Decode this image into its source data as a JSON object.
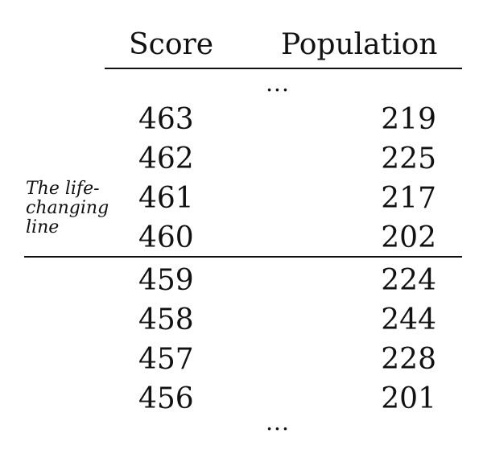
{
  "table": {
    "headers": {
      "score": "Score",
      "population": "Population"
    },
    "ellipsis_top": "...",
    "ellipsis_bottom": "...",
    "annotation": "The life-changing line",
    "rows_above_line": [
      {
        "score": "463",
        "population": "219"
      },
      {
        "score": "462",
        "population": "225"
      },
      {
        "score": "461",
        "population": "217"
      },
      {
        "score": "460",
        "population": "202"
      }
    ],
    "rows_below_line": [
      {
        "score": "459",
        "population": "224"
      },
      {
        "score": "458",
        "population": "244"
      },
      {
        "score": "457",
        "population": "228"
      },
      {
        "score": "456",
        "population": "201"
      }
    ]
  }
}
